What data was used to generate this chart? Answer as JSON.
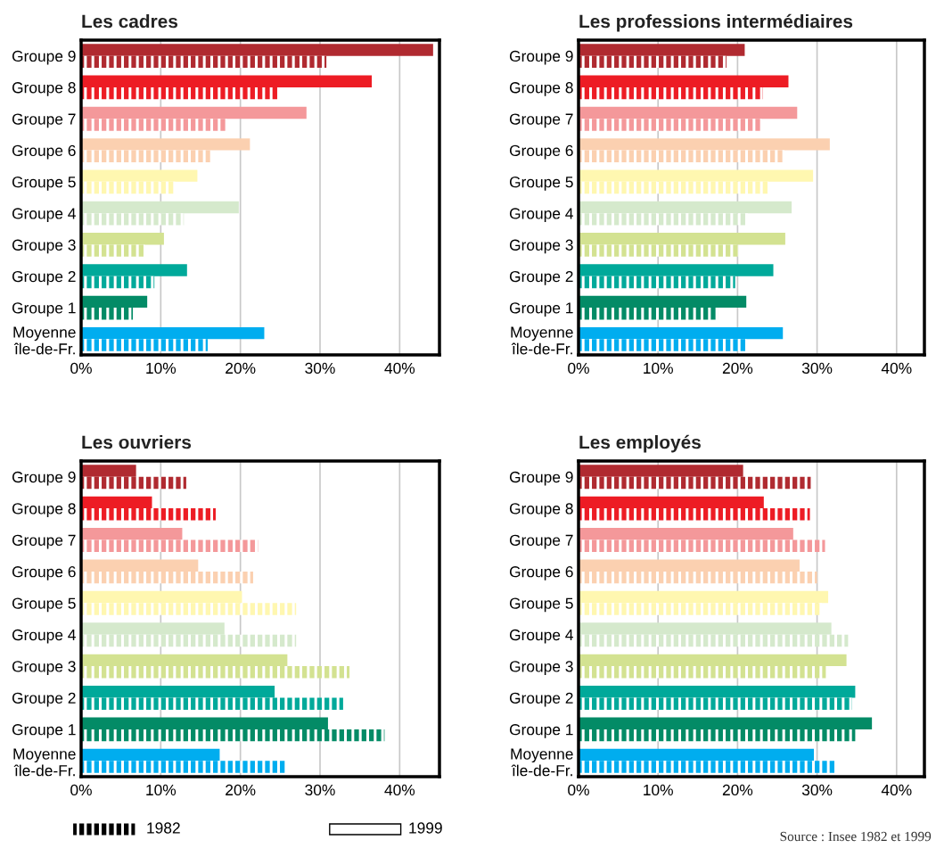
{
  "chart_data": [
    {
      "type": "bar",
      "orientation": "horizontal",
      "title": "Les cadres",
      "categories": [
        "Groupe 9",
        "Groupe 8",
        "Groupe 7",
        "Groupe 6",
        "Groupe 5",
        "Groupe 4",
        "Groupe 3",
        "Groupe 2",
        "Groupe 1",
        "Moyenne\nîle-de-Fr."
      ],
      "series": [
        {
          "colors": [
            "#b02a30",
            "#ed1c24",
            "#f4989a",
            "#fbd0b0",
            "#fff7b0",
            "#d5e9cc",
            "#d3e291",
            "#00a99a",
            "#038b66",
            "#00adef"
          ],
          "values": [
            44.2,
            36.5,
            28.3,
            21.2,
            14.6,
            19.8,
            10.4,
            13.3,
            8.3,
            23.0
          ]
        },
        {
          "colors": [
            "#b02a30",
            "#ed1c24",
            "#f4989a",
            "#fbd0b0",
            "#fff7b0",
            "#d5e9cc",
            "#d3e291",
            "#00a99a",
            "#038b66",
            "#00adef"
          ],
          "values": [
            30.8,
            24.9,
            18.3,
            16.2,
            11.8,
            12.9,
            8.0,
            9.2,
            6.5,
            15.9
          ]
        }
      ],
      "xlim": [
        0,
        45
      ],
      "xticks": [
        {
          "value": 0,
          "label": "0%"
        },
        {
          "value": 10,
          "label": "10%"
        },
        {
          "value": 20,
          "label": "20%"
        },
        {
          "value": 30,
          "label": "30%"
        },
        {
          "value": 40,
          "label": "40%"
        }
      ],
      "grid": "x"
    },
    {
      "type": "bar",
      "orientation": "horizontal",
      "title": "Les professions intermédiaires",
      "categories": [
        "Groupe 9",
        "Groupe 8",
        "Groupe 7",
        "Groupe 6",
        "Groupe 5",
        "Groupe 4",
        "Groupe 3",
        "Groupe 2",
        "Groupe 1",
        "Moyenne\nîle-de-Fr."
      ],
      "series": [
        {
          "colors": [
            "#b02a30",
            "#ed1c24",
            "#f4989a",
            "#fbd0b0",
            "#fff7b0",
            "#d5e9cc",
            "#d3e291",
            "#00a99a",
            "#038b66",
            "#00adef"
          ],
          "values": [
            20.9,
            26.4,
            27.5,
            31.6,
            29.5,
            26.8,
            26.0,
            24.5,
            21.1,
            25.7
          ]
        },
        {
          "colors": [
            "#b02a30",
            "#ed1c24",
            "#f4989a",
            "#fbd0b0",
            "#fff7b0",
            "#d5e9cc",
            "#d3e291",
            "#00a99a",
            "#038b66",
            "#00adef"
          ],
          "values": [
            18.6,
            23.2,
            23.0,
            25.9,
            23.9,
            21.3,
            20.1,
            19.7,
            17.5,
            21.1
          ]
        }
      ],
      "xlim": [
        0,
        43.5
      ],
      "xticks": [
        {
          "value": 0,
          "label": "0%"
        },
        {
          "value": 10,
          "label": "10%"
        },
        {
          "value": 20,
          "label": "20%"
        },
        {
          "value": 30,
          "label": "30%"
        },
        {
          "value": 40,
          "label": "40%"
        }
      ],
      "grid": "x"
    },
    {
      "type": "bar",
      "orientation": "horizontal",
      "title": "Les ouvriers",
      "categories": [
        "Groupe 9",
        "Groupe 8",
        "Groupe 7",
        "Groupe 6",
        "Groupe 5",
        "Groupe 4",
        "Groupe 3",
        "Groupe 2",
        "Groupe 1",
        "Moyenne\nîle-de-Fr."
      ],
      "series": [
        {
          "colors": [
            "#b02a30",
            "#ed1c24",
            "#f4989a",
            "#fbd0b0",
            "#fff7b0",
            "#d5e9cc",
            "#d3e291",
            "#00a99a",
            "#038b66",
            "#00adef"
          ],
          "values": [
            6.9,
            8.9,
            12.7,
            14.7,
            20.2,
            18.0,
            25.9,
            24.3,
            31.0,
            17.4
          ]
        },
        {
          "colors": [
            "#b02a30",
            "#ed1c24",
            "#f4989a",
            "#fbd0b0",
            "#fff7b0",
            "#d5e9cc",
            "#d3e291",
            "#00a99a",
            "#038b66",
            "#00adef"
          ],
          "values": [
            13.2,
            16.9,
            22.2,
            21.6,
            27.0,
            27.0,
            33.7,
            32.9,
            38.1,
            25.8
          ]
        }
      ],
      "xlim": [
        0,
        45
      ],
      "xticks": [
        {
          "value": 0,
          "label": "0%"
        },
        {
          "value": 10,
          "label": "10%"
        },
        {
          "value": 20,
          "label": "20%"
        },
        {
          "value": 30,
          "label": "30%"
        },
        {
          "value": 40,
          "label": "40%"
        }
      ],
      "grid": "x"
    },
    {
      "type": "bar",
      "orientation": "horizontal",
      "title": "Les employés",
      "categories": [
        "Groupe 9",
        "Groupe 8",
        "Groupe 7",
        "Groupe 6",
        "Groupe 5",
        "Groupe 4",
        "Groupe 3",
        "Groupe 2",
        "Groupe 1",
        "Moyenne\nîle-de-Fr."
      ],
      "series": [
        {
          "colors": [
            "#b02a30",
            "#ed1c24",
            "#f4989a",
            "#fbd0b0",
            "#fff7b0",
            "#d5e9cc",
            "#d3e291",
            "#00a99a",
            "#038b66",
            "#00adef"
          ],
          "values": [
            20.7,
            23.3,
            27.0,
            27.8,
            31.4,
            31.8,
            33.7,
            34.8,
            36.9,
            29.6
          ]
        },
        {
          "colors": [
            "#b02a30",
            "#ed1c24",
            "#f4989a",
            "#fbd0b0",
            "#fff7b0",
            "#d5e9cc",
            "#d3e291",
            "#00a99a",
            "#038b66",
            "#00adef"
          ],
          "values": [
            29.2,
            29.1,
            31.0,
            30.0,
            30.6,
            33.9,
            31.1,
            34.4,
            34.8,
            32.2
          ]
        }
      ],
      "xlim": [
        0,
        43.5
      ],
      "xticks": [
        {
          "value": 0,
          "label": "0%"
        },
        {
          "value": 10,
          "label": "10%"
        },
        {
          "value": 20,
          "label": "20%"
        },
        {
          "value": 30,
          "label": "30%"
        },
        {
          "value": 40,
          "label": "40%"
        }
      ],
      "grid": "x",
      "annotations": [
        "Source : Insee 1982 et 1999"
      ]
    },
    {
      "type": "other",
      "annotations": [
        "1982",
        "1999"
      ]
    }
  ]
}
